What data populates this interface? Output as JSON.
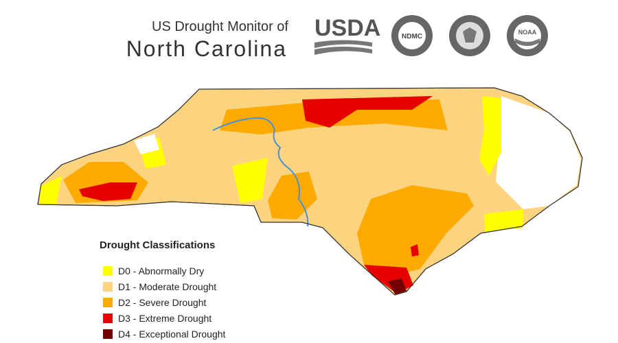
{
  "header": {
    "line1": "US Drought Monitor of",
    "line2": "North Carolina"
  },
  "logos": [
    "USDA",
    "NDMC",
    "NOAA"
  ],
  "legend": {
    "title": "Drought Classifications",
    "items": [
      {
        "label": "D0 - Abnormally Dry",
        "color": "#ffff00"
      },
      {
        "label": "D1 - Moderate Drought",
        "color": "#fcd37f"
      },
      {
        "label": "D2 - Severe Drought",
        "color": "#ffaa00"
      },
      {
        "label": "D3 - Extreme Drought",
        "color": "#e60000"
      },
      {
        "label": "D4 - Exceptional Drought",
        "color": "#730000"
      }
    ]
  }
}
